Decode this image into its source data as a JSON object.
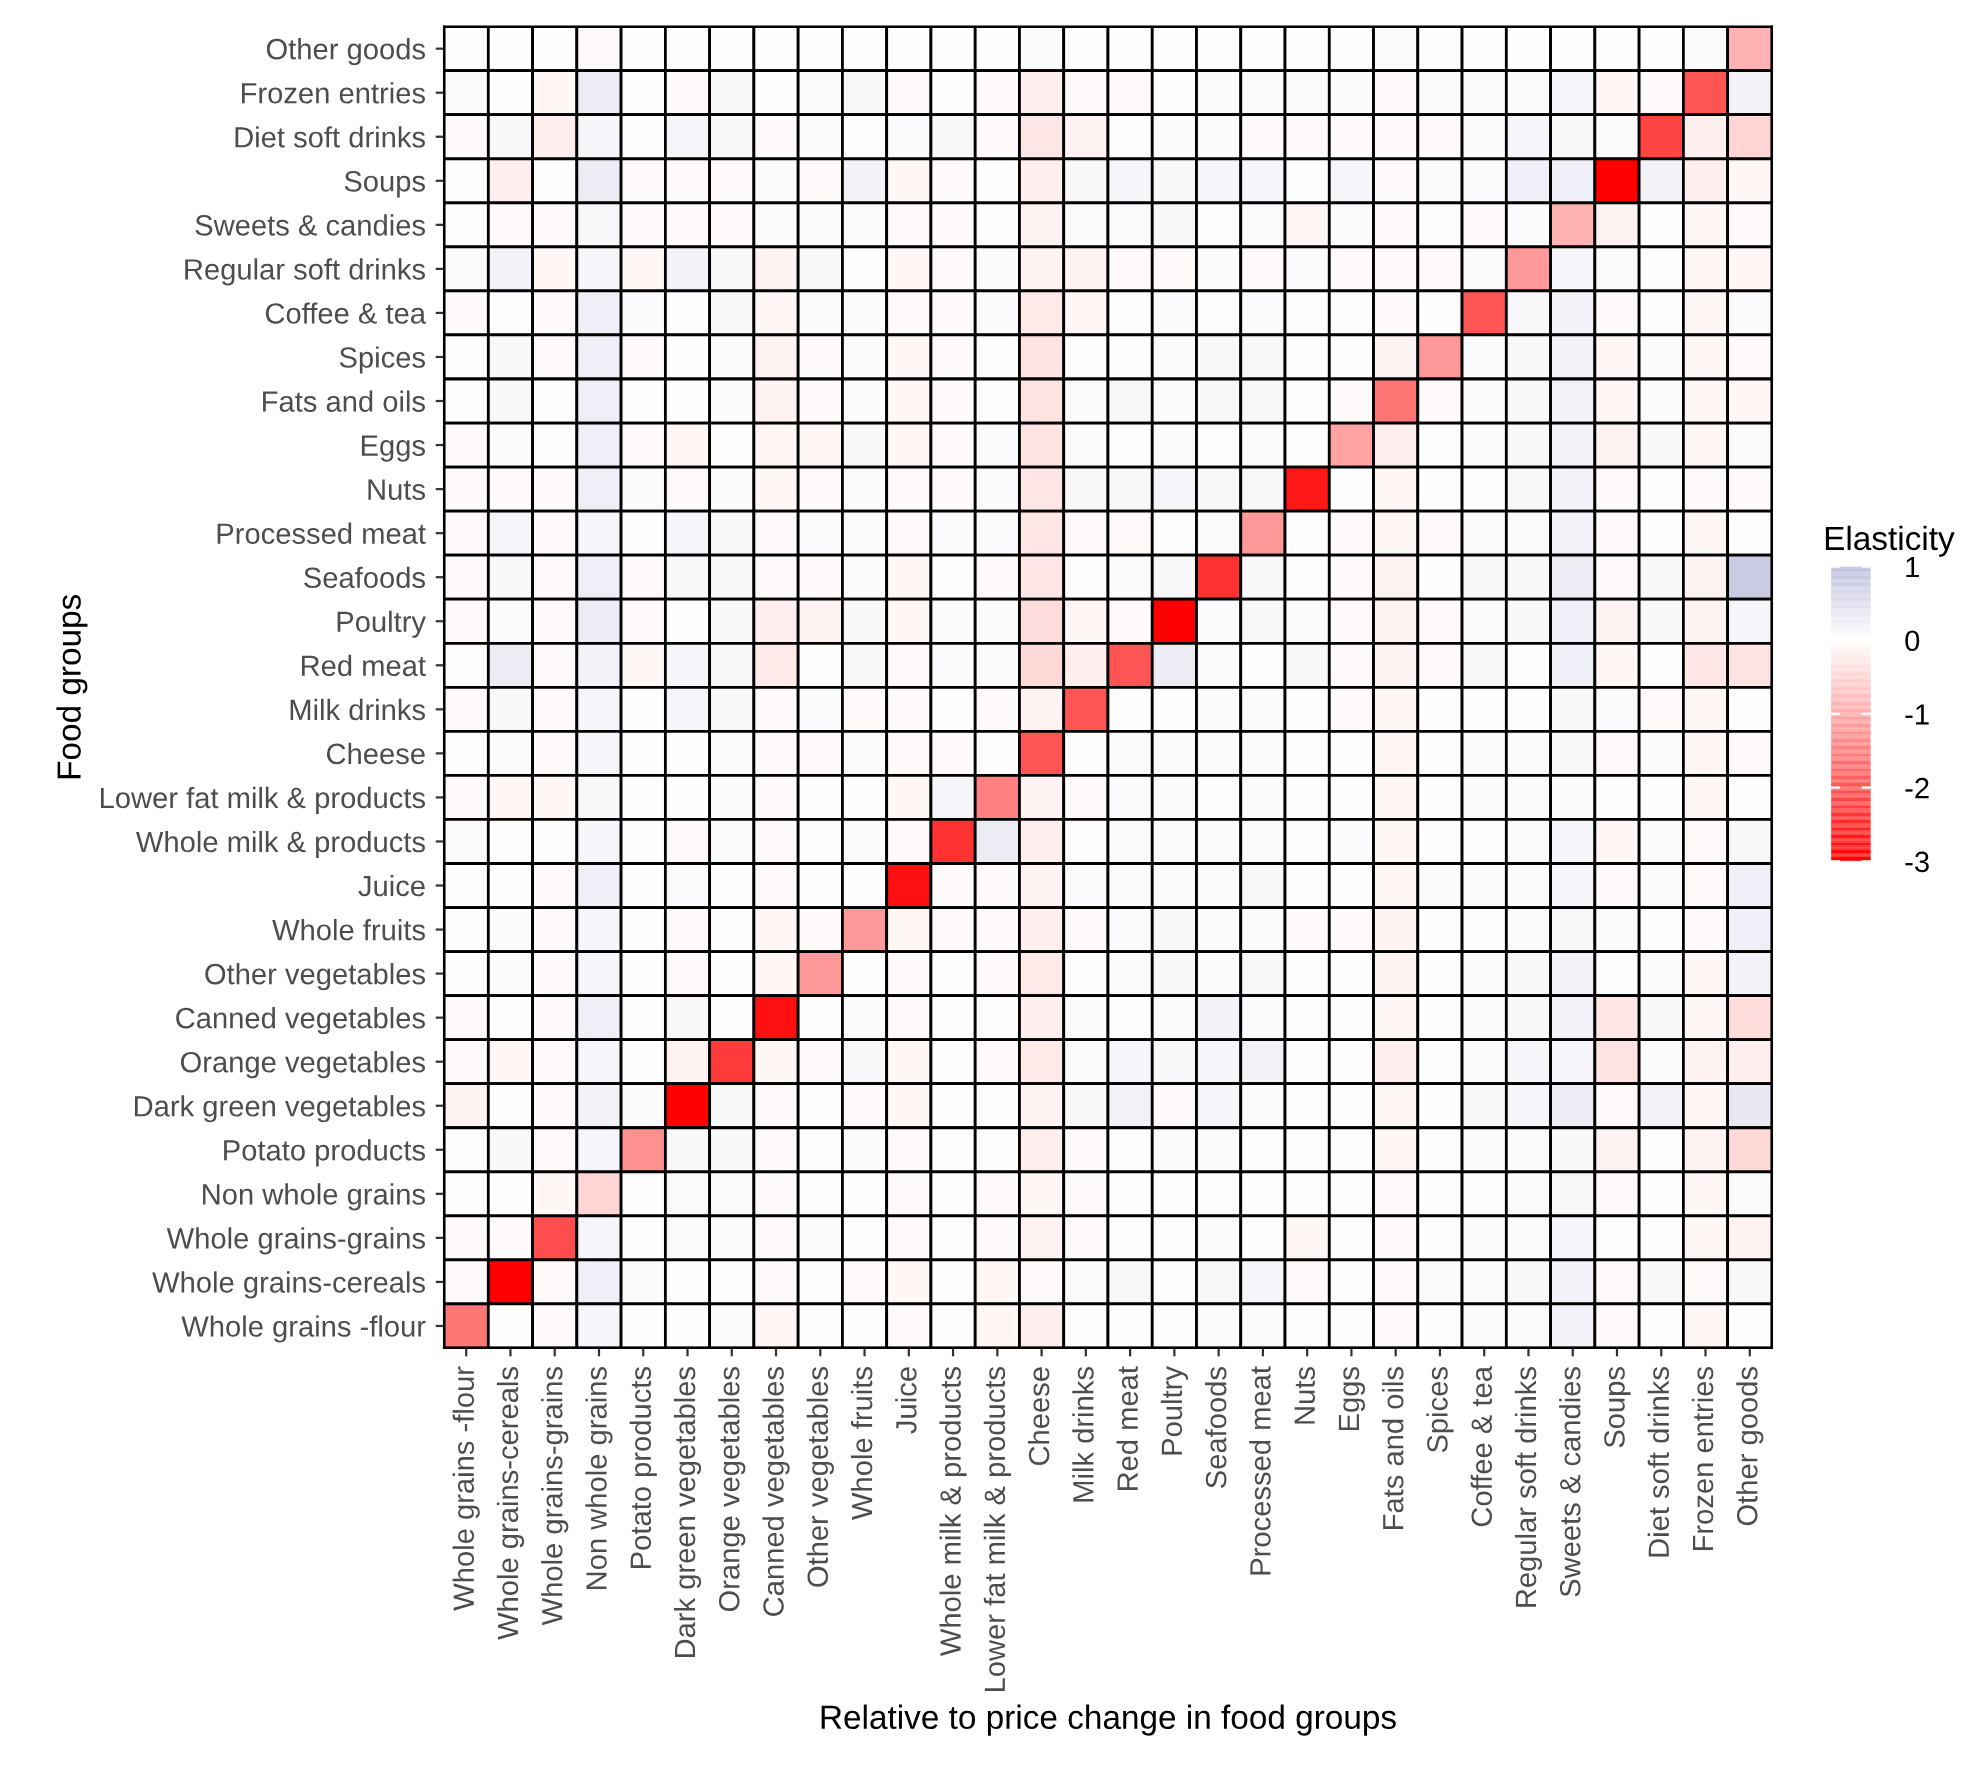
{
  "chart_data": {
    "type": "heatmap",
    "xlabel": "Relative to price change in food groups",
    "ylabel": "Food groups",
    "clabel": "Elasticity",
    "categories": [
      "Whole grains -flour",
      "Whole grains-cereals",
      "Whole grains-grains",
      "Non whole grains",
      "Potato products",
      "Dark green vegetables",
      "Orange vegetables",
      "Canned vegetables",
      "Other vegetables",
      "Whole fruits",
      "Juice",
      "Whole milk & products",
      "Lower fat milk & products",
      "Cheese",
      "Milk drinks",
      "Red meat",
      "Poultry",
      "Seafoods",
      "Processed meat",
      "Nuts",
      "Eggs",
      "Fats and oils",
      "Spices",
      "Coffee & tea",
      "Regular soft drinks",
      "Sweets & candies",
      "Soups",
      "Diet soft drinks",
      "Frozen entries",
      "Other goods"
    ],
    "y_categories": [
      "Other goods",
      "Frozen entries",
      "Diet soft drinks",
      "Soups",
      "Sweets & candies",
      "Regular soft drinks",
      "Coffee & tea",
      "Spices",
      "Fats and oils",
      "Eggs",
      "Nuts",
      "Processed meat",
      "Seafoods",
      "Poultry",
      "Red meat",
      "Milk drinks",
      "Cheese",
      "Lower fat milk & products",
      "Whole milk & products",
      "Juice",
      "Whole fruits",
      "Other vegetables",
      "Canned vegetables",
      "Orange vegetables",
      "Dark green vegetables",
      "Potato products",
      "Non whole grains",
      "Whole grains-grains",
      "Whole grains-cereals",
      "Whole grains -flour"
    ],
    "cells": [
      [
        0,
        0,
        0,
        -0.05,
        0,
        0,
        0,
        0,
        0,
        0,
        0,
        0,
        0,
        0.05,
        0,
        0,
        0,
        0,
        -0.02,
        0,
        0,
        0.05,
        0,
        0,
        0,
        -0.02,
        0,
        0,
        0.05,
        -0.9
      ],
      [
        0.05,
        0,
        -0.1,
        0.3,
        0,
        -0.05,
        0.1,
        0,
        0.05,
        0.1,
        -0.05,
        0,
        -0.05,
        -0.2,
        -0.05,
        -0.05,
        0,
        0.05,
        0.05,
        0.05,
        0.05,
        -0.05,
        0.05,
        0.05,
        0.05,
        0.15,
        -0.1,
        -0.05,
        -2.0,
        0.2
      ],
      [
        -0.05,
        0.1,
        -0.2,
        0.15,
        0,
        0.15,
        0.1,
        -0.05,
        0.05,
        0,
        0.05,
        0.1,
        -0.05,
        -0.3,
        -0.15,
        0,
        0.05,
        0.05,
        -0.05,
        -0.05,
        -0.05,
        -0.05,
        -0.05,
        0.05,
        0.15,
        0.1,
        0.05,
        -2.2,
        -0.2,
        -0.5
      ],
      [
        0,
        -0.2,
        0,
        0.3,
        -0.05,
        -0.05,
        -0.05,
        0.05,
        -0.05,
        0.2,
        -0.1,
        -0.05,
        0,
        -0.2,
        0.1,
        0.15,
        0.1,
        0.15,
        0.15,
        0,
        0.15,
        -0.05,
        0.05,
        0.05,
        0.25,
        0.25,
        -3.0,
        0.2,
        -0.2,
        -0.1
      ],
      [
        0,
        -0.05,
        -0.05,
        0.1,
        -0.05,
        -0.05,
        -0.05,
        0.05,
        0.05,
        0.05,
        -0.05,
        -0.05,
        0,
        -0.15,
        0.05,
        0.05,
        0.1,
        0,
        0.05,
        -0.1,
        0.05,
        -0.05,
        0,
        -0.05,
        0.05,
        -0.9,
        -0.15,
        0,
        -0.1,
        -0.05
      ],
      [
        0.05,
        0.2,
        -0.1,
        0.15,
        -0.1,
        0.2,
        0.1,
        -0.15,
        0.1,
        0,
        -0.1,
        -0.05,
        0.05,
        -0.15,
        -0.15,
        -0.05,
        -0.05,
        0.05,
        -0.05,
        0.05,
        -0.05,
        -0.05,
        -0.05,
        0.05,
        -1.2,
        0.15,
        0.05,
        0,
        -0.1,
        -0.1
      ],
      [
        -0.05,
        0,
        -0.05,
        0.25,
        0.05,
        0,
        0.1,
        -0.1,
        0.05,
        0.05,
        -0.05,
        -0.05,
        0.05,
        -0.25,
        -0.1,
        0,
        0.05,
        0,
        0.05,
        -0.02,
        0,
        -0.05,
        0,
        -2.0,
        0.1,
        0.2,
        -0.05,
        0,
        -0.1,
        0.05
      ],
      [
        0,
        0.1,
        -0.05,
        0.25,
        -0.05,
        0,
        0.05,
        -0.15,
        -0.05,
        0.05,
        -0.1,
        -0.05,
        0,
        -0.35,
        0,
        0,
        0.05,
        0.1,
        0.1,
        0,
        0,
        -0.15,
        -1.2,
        0.05,
        0.1,
        0.2,
        -0.1,
        0.05,
        -0.1,
        -0.05
      ],
      [
        0,
        0.1,
        0,
        0.25,
        0,
        0,
        0.05,
        -0.15,
        -0.05,
        0.05,
        -0.1,
        -0.05,
        0,
        -0.35,
        0.05,
        0.1,
        0.05,
        0.1,
        0.1,
        0,
        -0.05,
        -1.6,
        -0.05,
        0.05,
        0.1,
        0.2,
        -0.1,
        0.05,
        -0.1,
        -0.1
      ],
      [
        -0.05,
        0.05,
        0,
        0.25,
        -0.05,
        -0.1,
        0,
        -0.1,
        -0.1,
        0.1,
        -0.1,
        -0.05,
        0.05,
        -0.35,
        0.05,
        0,
        0.05,
        0,
        0.05,
        0,
        -1.1,
        -0.2,
        0,
        0.05,
        0.1,
        0.2,
        -0.15,
        0.1,
        -0.1,
        0.05
      ],
      [
        -0.05,
        -0.05,
        -0.05,
        0.25,
        0.05,
        -0.05,
        0.05,
        -0.1,
        -0.05,
        0.05,
        -0.05,
        -0.05,
        0.05,
        -0.3,
        0.1,
        0.1,
        0.15,
        0.1,
        0.1,
        -2.7,
        0,
        -0.1,
        0,
        0,
        0.1,
        0.2,
        -0.05,
        0,
        -0.05,
        -0.05
      ],
      [
        -0.05,
        0.15,
        -0.05,
        0.15,
        0,
        0.15,
        0.1,
        -0.05,
        0.05,
        0.05,
        -0.05,
        0.05,
        0.05,
        -0.3,
        -0.05,
        -0.05,
        -0.02,
        0.05,
        -1.2,
        0,
        -0.05,
        -0.1,
        -0.05,
        0.05,
        0.05,
        0.2,
        -0.05,
        0,
        -0.1,
        0
      ],
      [
        -0.05,
        0.1,
        -0.05,
        0.25,
        -0.05,
        0.1,
        0.1,
        -0.05,
        -0.05,
        0.05,
        -0.1,
        0,
        -0.05,
        -0.3,
        0,
        0.05,
        0.1,
        -2.4,
        0.1,
        0,
        -0.05,
        -0.15,
        0,
        0.1,
        0.1,
        0.3,
        -0.05,
        0.1,
        -0.15,
        0.8
      ],
      [
        -0.05,
        0.05,
        -0.05,
        0.3,
        -0.05,
        0,
        0.1,
        -0.2,
        -0.15,
        0.1,
        -0.1,
        0.05,
        0.05,
        -0.4,
        -0.1,
        -0.05,
        -3.0,
        0.05,
        0.1,
        0.05,
        -0.05,
        -0.15,
        -0.05,
        0.05,
        0.1,
        0.25,
        -0.15,
        0.1,
        -0.15,
        0.15
      ],
      [
        0,
        0.3,
        -0.05,
        0.2,
        -0.1,
        0.15,
        0.1,
        -0.25,
        0,
        0.1,
        -0.05,
        0.05,
        0.05,
        -0.45,
        -0.2,
        -2.0,
        0.3,
        0.05,
        0,
        0.1,
        -0.05,
        -0.15,
        -0.05,
        0.1,
        0,
        0.25,
        -0.1,
        0,
        -0.3,
        -0.35
      ],
      [
        -0.05,
        0.1,
        -0.05,
        0.15,
        0,
        0.15,
        0.1,
        -0.05,
        0.05,
        -0.05,
        -0.05,
        0,
        -0.05,
        -0.15,
        -2.0,
        0,
        0,
        0.05,
        0.05,
        0,
        -0.05,
        -0.1,
        0.02,
        0,
        0,
        0.1,
        0.05,
        -0.05,
        -0.1,
        0
      ],
      [
        -0.02,
        0.05,
        -0.05,
        0.15,
        0.02,
        0,
        0.05,
        -0.05,
        -0.05,
        0.05,
        -0.05,
        -0.05,
        0,
        -2.0,
        0,
        0.05,
        0.05,
        0.05,
        0.05,
        0,
        0,
        -0.1,
        0,
        0.05,
        0.05,
        0.1,
        -0.05,
        0.05,
        -0.1,
        -0.05
      ],
      [
        -0.05,
        -0.1,
        -0.1,
        0.1,
        0.02,
        0.02,
        0.05,
        -0.05,
        0,
        0,
        -0.1,
        0.15,
        -1.5,
        -0.15,
        -0.05,
        0.05,
        0.05,
        0,
        0.05,
        -0.02,
        0,
        -0.1,
        0.02,
        0.05,
        0.05,
        0.05,
        0,
        0,
        -0.1,
        0
      ],
      [
        0.05,
        0,
        0,
        0.15,
        0,
        -0.05,
        0.05,
        -0.05,
        0,
        0.05,
        -0.05,
        -2.4,
        0.3,
        -0.2,
        0.02,
        0.05,
        0.05,
        0.05,
        0.05,
        0,
        0.05,
        -0.1,
        0,
        0,
        0.05,
        0.15,
        -0.1,
        0.05,
        -0.05,
        0.1
      ],
      [
        0,
        -0.02,
        -0.05,
        0.25,
        0,
        0.05,
        0,
        -0.05,
        0.02,
        0,
        -2.8,
        -0.05,
        -0.05,
        -0.15,
        0.05,
        0.05,
        0.05,
        0.05,
        0.1,
        0.02,
        -0.02,
        -0.1,
        0.05,
        0.05,
        0.05,
        0.15,
        -0.05,
        0.05,
        -0.05,
        0.25
      ],
      [
        0,
        0.05,
        -0.05,
        0.15,
        0.02,
        -0.05,
        0,
        -0.1,
        -0.05,
        -1.2,
        -0.1,
        -0.05,
        -0.05,
        -0.2,
        -0.05,
        0.05,
        0.1,
        0.05,
        0.05,
        -0.05,
        -0.05,
        -0.15,
        -0.02,
        0,
        0.05,
        0.1,
        0.05,
        -0.02,
        -0.05,
        0.25
      ],
      [
        -0.02,
        0.05,
        -0.05,
        0.15,
        0,
        -0.05,
        0.02,
        -0.1,
        -1.2,
        0.02,
        -0.05,
        -0.02,
        -0.05,
        -0.25,
        0,
        0.05,
        0.1,
        0.05,
        0.1,
        0,
        -0.02,
        -0.15,
        -0.02,
        0.05,
        0.1,
        0.2,
        -0.02,
        0.05,
        -0.1,
        0.2
      ],
      [
        -0.05,
        0.02,
        -0.05,
        0.25,
        -0.02,
        0.1,
        0.02,
        -2.8,
        0,
        0.05,
        -0.05,
        -0.02,
        0,
        -0.2,
        0.05,
        0.02,
        0.05,
        0.2,
        0.05,
        0.02,
        0,
        -0.1,
        -0.02,
        0.05,
        0.1,
        0.2,
        -0.3,
        0.1,
        -0.1,
        -0.4
      ],
      [
        -0.05,
        -0.1,
        -0.05,
        0.15,
        0,
        -0.15,
        -2.3,
        -0.1,
        -0.05,
        0.1,
        -0.1,
        -0.02,
        -0.05,
        -0.25,
        0.05,
        0.15,
        0.1,
        0.15,
        0.2,
        -0.02,
        0.02,
        -0.2,
        0,
        0.05,
        0.15,
        0.15,
        -0.35,
        0.05,
        -0.15,
        -0.2
      ],
      [
        -0.15,
        0,
        -0.05,
        0.2,
        0.05,
        -3.0,
        0.1,
        -0.05,
        -0.02,
        -0.05,
        -0.1,
        0.02,
        0.02,
        -0.15,
        0.1,
        0.2,
        -0.05,
        0.15,
        0.05,
        0,
        -0.02,
        -0.1,
        0,
        0.1,
        0.15,
        0.3,
        -0.05,
        0.2,
        -0.1,
        0.35
      ],
      [
        0,
        0.1,
        -0.05,
        0.15,
        -1.3,
        0.1,
        0.1,
        -0.05,
        0,
        0.05,
        -0.05,
        -0.02,
        0,
        -0.2,
        -0.05,
        -0.02,
        0.05,
        0.05,
        0,
        0.02,
        0.02,
        -0.1,
        -0.02,
        0.05,
        0.05,
        0.1,
        -0.15,
        0,
        -0.15,
        -0.45
      ],
      [
        0,
        0,
        -0.1,
        -0.5,
        0,
        0.05,
        0.05,
        -0.05,
        0,
        0,
        -0.05,
        -0.02,
        -0.05,
        -0.1,
        -0.05,
        -0.02,
        0.02,
        0.02,
        0.02,
        -0.02,
        0,
        -0.05,
        0,
        0,
        0.05,
        0.1,
        -0.05,
        0,
        -0.1,
        0.05
      ],
      [
        -0.05,
        -0.05,
        -2.1,
        0.15,
        0,
        0.05,
        0.05,
        -0.05,
        0.05,
        0,
        -0.05,
        -0.02,
        -0.05,
        -0.15,
        -0.05,
        0,
        0,
        0.05,
        0.02,
        -0.1,
        -0.02,
        -0.05,
        -0.02,
        0.05,
        0.05,
        0.15,
        -0.02,
        0,
        -0.1,
        -0.15
      ],
      [
        -0.05,
        -3.0,
        -0.05,
        0.25,
        0.05,
        0.02,
        -0.02,
        -0.05,
        0,
        -0.05,
        -0.1,
        0,
        -0.1,
        -0.05,
        0.05,
        0.1,
        0.02,
        0.1,
        0.15,
        -0.05,
        0.02,
        -0.05,
        0.05,
        0.05,
        0.1,
        0.2,
        -0.05,
        0.1,
        -0.05,
        0.1
      ],
      [
        -1.6,
        -0.02,
        -0.05,
        0.15,
        0,
        0,
        0.05,
        -0.1,
        0,
        -0.02,
        -0.05,
        -0.02,
        -0.1,
        -0.2,
        0,
        0.02,
        0,
        0.05,
        0.05,
        -0.02,
        -0.02,
        -0.05,
        0,
        0.05,
        0.05,
        0.2,
        -0.05,
        0,
        -0.1,
        0
      ]
    ],
    "clim": [
      -3,
      1
    ],
    "cticks": [
      -3,
      -2,
      -1,
      0,
      1
    ]
  }
}
